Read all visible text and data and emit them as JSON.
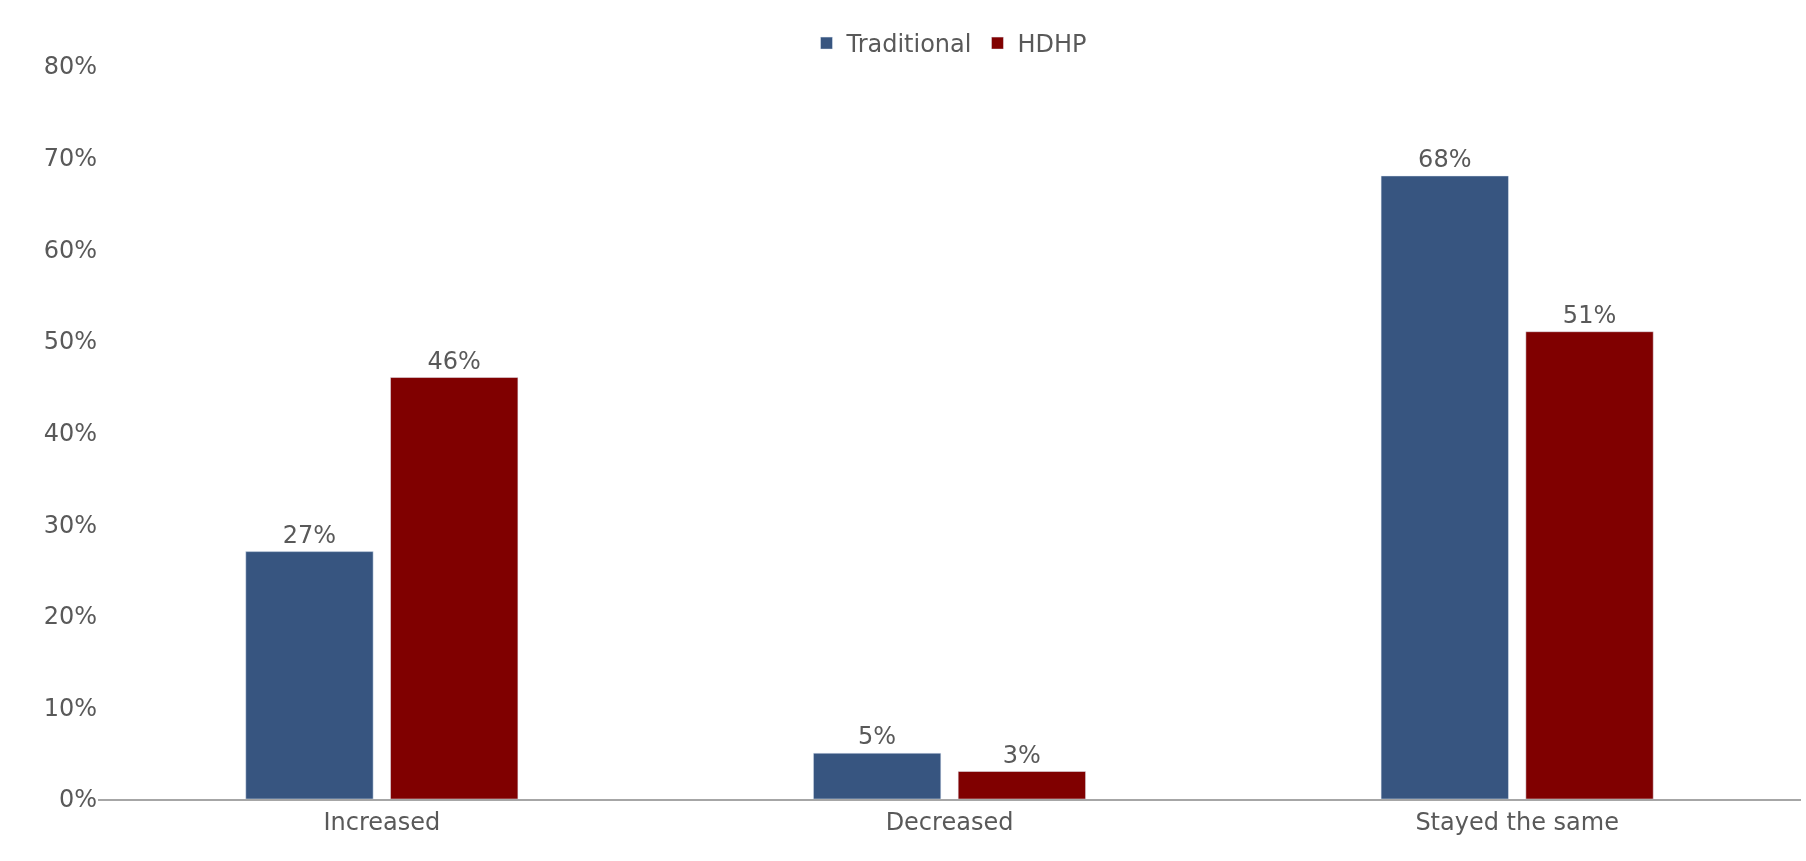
{
  "chart_data": {
    "type": "bar",
    "categories": [
      "Increased",
      "Decreased",
      "Stayed the same"
    ],
    "series": [
      {
        "name": "Traditional",
        "color": "#375580",
        "values": [
          27,
          5,
          68
        ],
        "value_labels": [
          "27%",
          "5%",
          "68%"
        ]
      },
      {
        "name": "HDHP",
        "color": "#800000",
        "values": [
          46,
          3,
          51
        ],
        "value_labels": [
          "46%",
          "3%",
          "51%"
        ]
      }
    ],
    "ylim": [
      0,
      80
    ],
    "yticks": [
      {
        "value": 0,
        "label": "0%"
      },
      {
        "value": 10,
        "label": "10%"
      },
      {
        "value": 20,
        "label": "20%"
      },
      {
        "value": 30,
        "label": "30%"
      },
      {
        "value": 40,
        "label": "40%"
      },
      {
        "value": 50,
        "label": "50%"
      },
      {
        "value": 60,
        "label": "60%"
      },
      {
        "value": 70,
        "label": "70%"
      },
      {
        "value": 80,
        "label": "80%"
      }
    ],
    "legend": "top"
  }
}
